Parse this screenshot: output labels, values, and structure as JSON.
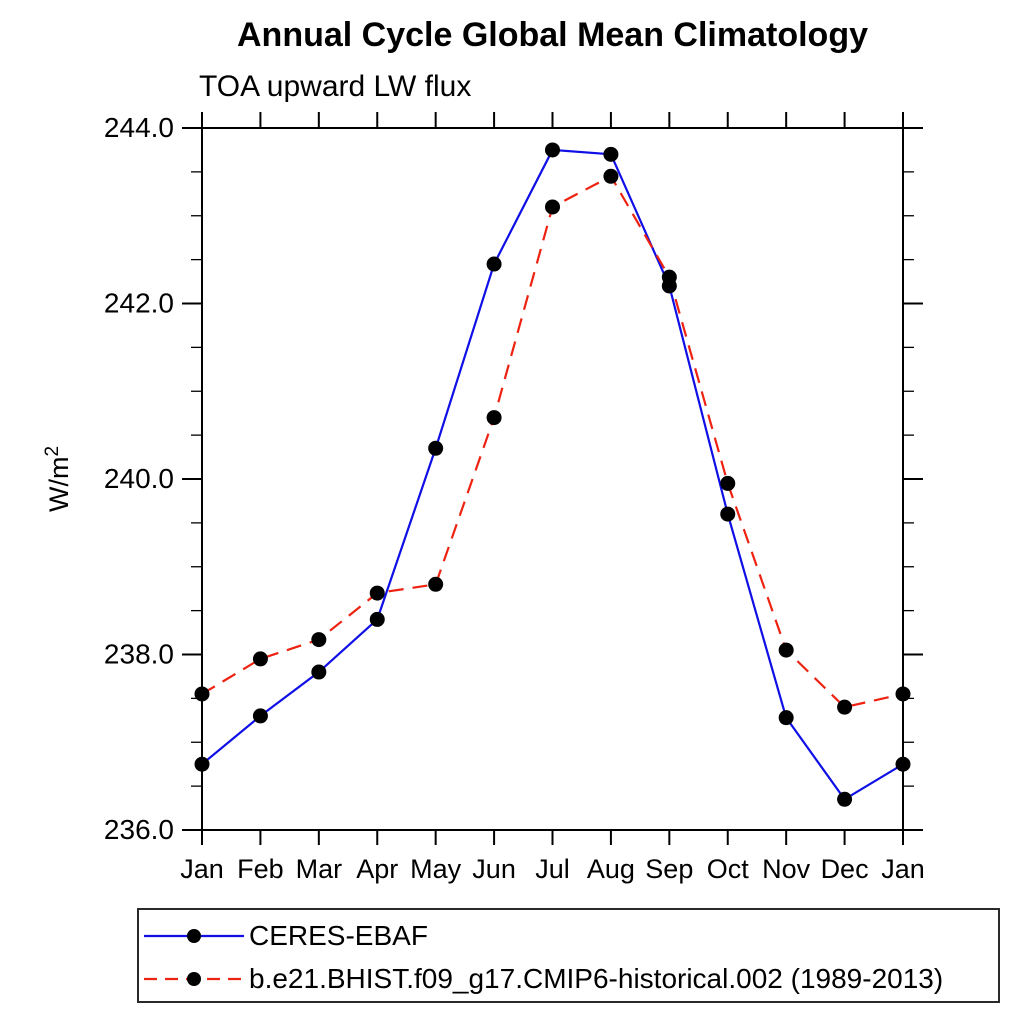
{
  "chart_data": {
    "type": "line",
    "title": "Annual Cycle Global Mean Climatology",
    "subtitle": "TOA upward LW flux",
    "ylabel_base": "W/m",
    "ylabel_sup": "2",
    "categories": [
      "Jan",
      "Feb",
      "Mar",
      "Apr",
      "May",
      "Jun",
      "Jul",
      "Aug",
      "Sep",
      "Oct",
      "Nov",
      "Dec",
      "Jan"
    ],
    "ylim": [
      236.0,
      244.0
    ],
    "ytick_major": [
      236.0,
      238.0,
      240.0,
      242.0,
      244.0
    ],
    "ytick_major_labels": [
      "236.0",
      "238.0",
      "240.0",
      "242.0",
      "244.0"
    ],
    "ytick_minor_step": 0.5,
    "grid": "off",
    "frame": "box with outward ticks on all four sides",
    "marker": "filled-circle",
    "marker_color": "#000000",
    "axis_color": "#000000",
    "legend_position": "bottom-left framed box",
    "series": [
      {
        "name": "CERES-EBAF",
        "color": "#0f0fe6",
        "line_style": "solid",
        "values": [
          236.75,
          237.3,
          237.8,
          238.4,
          240.35,
          242.45,
          243.75,
          243.7,
          242.2,
          239.6,
          237.28,
          236.35,
          236.75
        ]
      },
      {
        "name": "b.e21.BHIST.f09_g17.CMIP6-historical.002 (1989-2013)",
        "color": "#ee2211",
        "line_style": "dashed",
        "values": [
          237.55,
          237.95,
          238.17,
          238.7,
          238.8,
          240.7,
          243.1,
          243.45,
          242.3,
          239.95,
          238.05,
          237.4,
          237.55
        ]
      }
    ]
  }
}
